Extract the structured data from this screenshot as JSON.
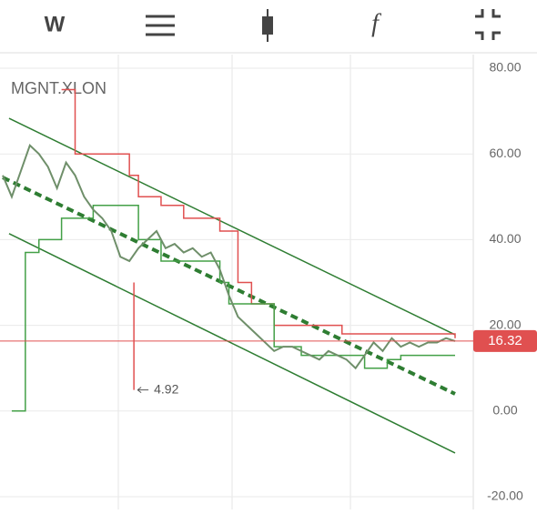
{
  "toolbar": {
    "interval": "W",
    "function": "f"
  },
  "chart_data": {
    "type": "line",
    "title": "MGNT.XLON",
    "x": [
      0,
      2,
      4,
      6,
      8,
      10,
      12,
      14,
      16,
      18,
      20,
      22,
      24,
      26,
      28,
      30,
      32,
      34,
      36,
      38,
      40,
      42,
      44,
      46,
      48,
      50,
      52,
      54,
      56,
      58,
      60,
      62,
      64,
      66,
      68,
      70,
      72,
      74,
      76,
      78,
      80,
      82,
      84,
      86,
      88,
      90,
      92,
      94,
      96,
      98,
      100
    ],
    "series": [
      {
        "color": "#6f8f6a",
        "values": [
          55,
          50,
          56,
          62,
          60,
          57,
          52,
          58,
          55,
          50,
          47,
          45,
          42,
          36,
          35,
          38,
          40,
          42,
          38,
          39,
          37,
          38,
          36,
          37,
          33,
          27,
          22,
          20,
          18,
          16,
          14,
          15,
          15,
          14,
          13,
          12,
          14,
          13,
          12,
          10,
          13,
          16,
          14,
          17,
          15,
          16,
          15,
          16,
          16,
          17,
          16.32
        ]
      }
    ],
    "lines": [
      {
        "color": "#2e7d32",
        "style": "solid",
        "x": [
          1.4,
          100
        ],
        "values": [
          68.3,
          17.8
        ]
      },
      {
        "color": "#2e7d32",
        "style": "solid",
        "x": [
          1.4,
          100
        ],
        "values": [
          41.4,
          -9.8
        ]
      },
      {
        "color": "#2e7d32",
        "style": "dashed",
        "x": [
          0,
          100
        ],
        "values": [
          54.5,
          4
        ]
      },
      {
        "color": "#e05050",
        "style": "step",
        "x": [
          13,
          16,
          28,
          30,
          35,
          40,
          48,
          52,
          55,
          60,
          75,
          100
        ],
        "values": [
          75,
          60,
          55,
          50,
          48,
          45,
          42,
          30,
          25,
          20,
          18,
          17
        ]
      },
      {
        "color": "#43a047",
        "style": "step",
        "x": [
          2,
          5,
          8,
          13,
          20,
          30,
          35,
          48,
          50,
          60,
          66,
          80,
          85,
          88,
          100
        ],
        "values": [
          0,
          37,
          40,
          45,
          48,
          40,
          35,
          30,
          25,
          15,
          13,
          10,
          12,
          13,
          13
        ]
      }
    ],
    "last_price": 16.32,
    "last_price_color": "#e05050",
    "annotations": [
      {
        "x": 29,
        "value": 4.92
      }
    ],
    "xlim": [
      0,
      100
    ],
    "ylim": [
      -20,
      80
    ],
    "yticks": [
      {
        "value": -20,
        "label": "-20.00"
      },
      {
        "value": 0,
        "label": "0.00"
      },
      {
        "value": 20,
        "label": "20.00"
      },
      {
        "value": 40,
        "label": "40.00"
      },
      {
        "value": 60,
        "label": "60.00"
      },
      {
        "value": 80,
        "label": "80.00"
      }
    ],
    "grid": true
  }
}
